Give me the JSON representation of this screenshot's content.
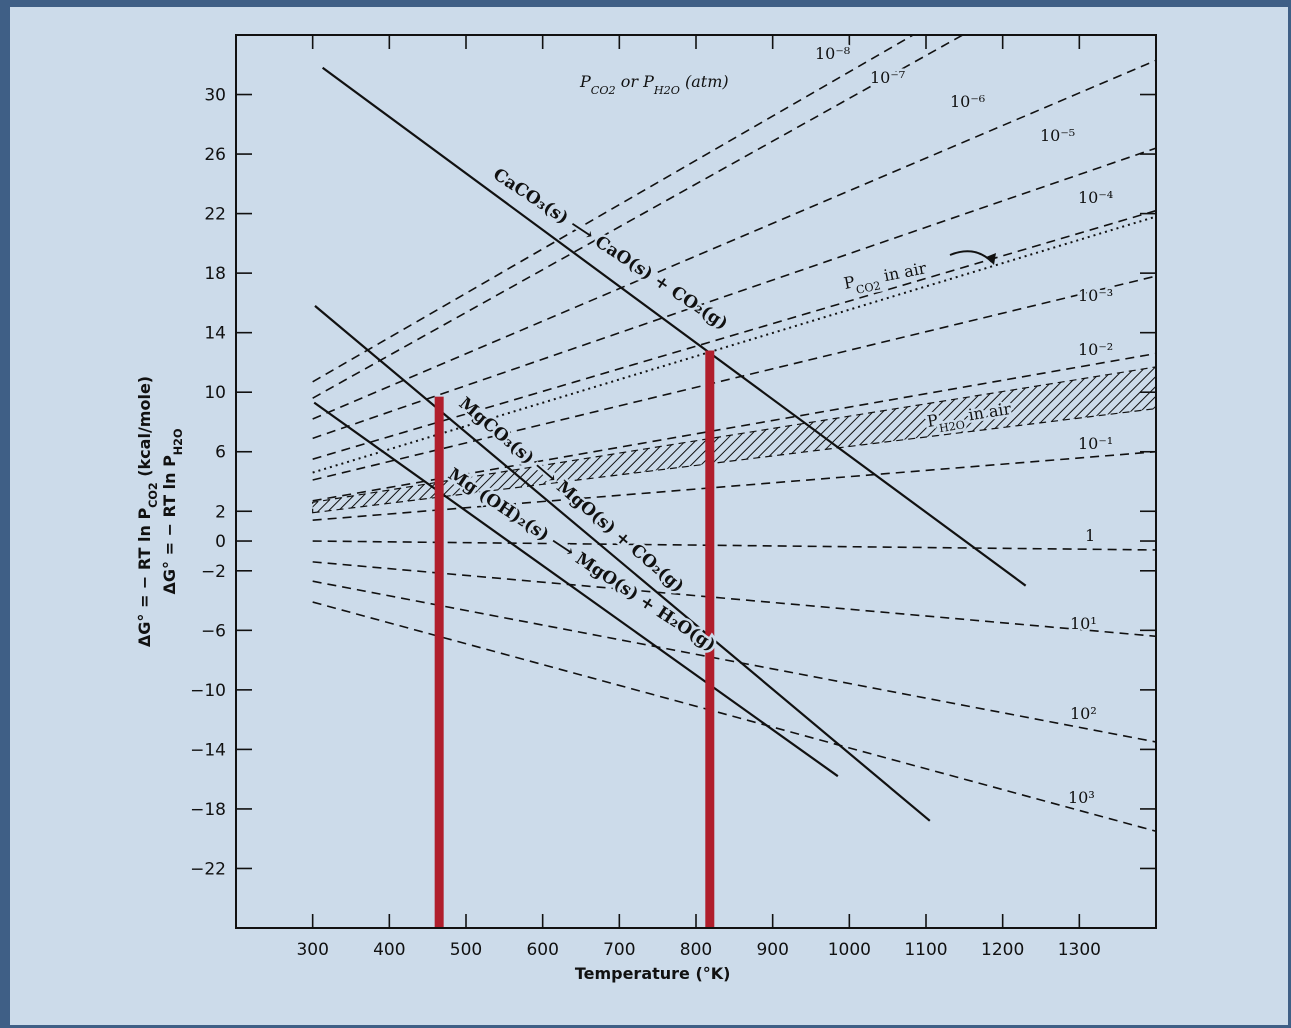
{
  "chart_data": {
    "type": "line",
    "xlabel": "Temperature (°K)",
    "ylabel_lines": [
      "ΔG° = − RT ln P_CO2 (kcal/mole)",
      "ΔG° = − RT ln P_H2O"
    ],
    "xlim": [
      200,
      1400
    ],
    "ylim": [
      -26,
      34
    ],
    "x_ticks": [
      300,
      400,
      500,
      600,
      700,
      800,
      900,
      1000,
      1100,
      1200,
      1300
    ],
    "y_ticks": [
      30,
      26,
      22,
      18,
      14,
      10,
      6,
      2,
      0,
      -2,
      -6,
      -10,
      -14,
      -18,
      -22
    ],
    "pressure_header": "P_CO2 or P_H2O (atm)",
    "pressure_lines": [
      {
        "label": "10⁻⁸",
        "x": [
          300,
          1100
        ],
        "y": [
          10.7,
          34.5
        ]
      },
      {
        "label": "10⁻⁷",
        "x": [
          300,
          1200
        ],
        "y": [
          9.6,
          35.5
        ]
      },
      {
        "label": "10⁻⁶",
        "x": [
          300,
          1400
        ],
        "y": [
          8.2,
          32.3
        ]
      },
      {
        "label": "10⁻⁵",
        "x": [
          300,
          1400
        ],
        "y": [
          6.9,
          26.4
        ]
      },
      {
        "label": "10⁻⁴",
        "x": [
          300,
          1400
        ],
        "y": [
          5.5,
          22.2
        ]
      },
      {
        "label": "10⁻³",
        "x": [
          300,
          1400
        ],
        "y": [
          4.1,
          17.8
        ]
      },
      {
        "label": "10⁻²",
        "x": [
          300,
          1400
        ],
        "y": [
          2.7,
          12.6
        ]
      },
      {
        "label": "10⁻¹",
        "x": [
          300,
          1400
        ],
        "y": [
          1.4,
          6.0
        ]
      },
      {
        "label": "1",
        "x": [
          300,
          1400
        ],
        "y": [
          0.0,
          -0.6
        ]
      },
      {
        "label": "10¹",
        "x": [
          300,
          1400
        ],
        "y": [
          -1.4,
          -6.4
        ]
      },
      {
        "label": "10²",
        "x": [
          300,
          1400
        ],
        "y": [
          -2.7,
          -13.5
        ]
      },
      {
        "label": "10³",
        "x": [
          300,
          1400
        ],
        "y": [
          -4.1,
          -19.5
        ]
      }
    ],
    "air_lines": [
      {
        "label": "P_CO2 in air",
        "x": [
          300,
          1400
        ],
        "y": [
          4.6,
          21.8
        ]
      },
      {
        "label": "P_H2O in air",
        "band_low": {
          "x": [
            300,
            1400
          ],
          "y": [
            1.9,
            8.9
          ]
        },
        "band_high": {
          "x": [
            300,
            1400
          ],
          "y": [
            2.6,
            11.7
          ]
        }
      }
    ],
    "reactions": [
      {
        "label_parts": [
          "CaCO₃(s)",
          "CaO(s) + CO₂(g)"
        ],
        "x": [
          313,
          1230
        ],
        "y": [
          31.8,
          -3.0
        ]
      },
      {
        "label_parts": [
          "MgCO₃(s)",
          "MgO(s) + CO₂(g)"
        ],
        "x": [
          303,
          1105
        ],
        "y": [
          15.8,
          -18.8
        ]
      },
      {
        "label_parts": [
          "Mg (OH)₂(s)",
          "MgO(s) + H₂O(g)"
        ],
        "x": [
          302,
          985
        ],
        "y": [
          9.3,
          -15.8
        ]
      }
    ],
    "markers": [
      {
        "x": 465,
        "y_top": 9.7,
        "color": "#b01e2c"
      },
      {
        "x": 818,
        "y_top": 12.8,
        "color": "#b01e2c"
      }
    ]
  }
}
